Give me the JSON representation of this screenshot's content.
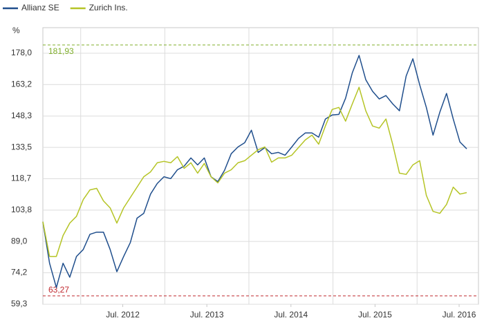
{
  "chart_data": {
    "type": "line",
    "y_unit": "%",
    "x": [
      2011.55,
      2011.63,
      2011.71,
      2011.79,
      2011.87,
      2011.95,
      2012.03,
      2012.11,
      2012.19,
      2012.27,
      2012.35,
      2012.43,
      2012.51,
      2012.59,
      2012.67,
      2012.75,
      2012.83,
      2012.91,
      2012.99,
      2013.07,
      2013.15,
      2013.23,
      2013.31,
      2013.39,
      2013.47,
      2013.55,
      2013.63,
      2013.71,
      2013.79,
      2013.87,
      2013.95,
      2014.03,
      2014.11,
      2014.19,
      2014.27,
      2014.35,
      2014.43,
      2014.51,
      2014.59,
      2014.67,
      2014.75,
      2014.83,
      2014.91,
      2014.99,
      2015.07,
      2015.15,
      2015.23,
      2015.31,
      2015.39,
      2015.47,
      2015.55,
      2015.63,
      2015.71,
      2015.79,
      2015.87,
      2015.95,
      2016.03,
      2016.11,
      2016.19,
      2016.27,
      2016.35,
      2016.43,
      2016.51,
      2016.59
    ],
    "series": [
      {
        "name": "Allianz SE",
        "color": "#1f4e8c",
        "values": [
          98.3,
          78.7,
          67.2,
          78.7,
          72.1,
          81.9,
          85.2,
          92.4,
          93.4,
          93.4,
          85.2,
          74.7,
          81.9,
          88.5,
          100.0,
          102.3,
          111.4,
          116.4,
          119.6,
          118.7,
          122.9,
          124.6,
          128.5,
          125.2,
          128.5,
          119.6,
          117.3,
          122.6,
          130.5,
          133.7,
          135.7,
          141.6,
          131.1,
          133.4,
          130.5,
          131.1,
          129.8,
          133.7,
          137.7,
          140.3,
          140.3,
          138.3,
          146.9,
          148.8,
          149.1,
          156.7,
          168.8,
          177.0,
          165.5,
          160.0,
          156.4,
          158.0,
          154.1,
          150.8,
          167.2,
          175.4,
          163.2,
          152.4,
          139.3,
          150.1,
          159.0,
          146.9,
          136.0,
          132.8
        ]
      },
      {
        "name": "Zurich Ins.",
        "color": "#b5c425",
        "values": [
          98.3,
          81.9,
          81.9,
          91.8,
          97.7,
          100.9,
          108.8,
          113.4,
          114.1,
          108.2,
          104.9,
          97.7,
          104.9,
          109.8,
          114.7,
          119.6,
          121.9,
          126.2,
          126.9,
          126.2,
          129.1,
          123.6,
          126.2,
          121.3,
          125.9,
          119.6,
          116.7,
          121.3,
          122.9,
          126.2,
          127.2,
          129.8,
          132.4,
          133.7,
          126.5,
          128.5,
          128.5,
          129.8,
          133.4,
          137.0,
          139.3,
          135.0,
          143.6,
          151.4,
          152.4,
          145.9,
          154.1,
          161.9,
          150.8,
          143.6,
          142.6,
          146.9,
          135.0,
          121.3,
          120.7,
          125.2,
          127.2,
          110.8,
          103.2,
          102.3,
          106.5,
          114.7,
          111.4,
          112.1
        ]
      }
    ],
    "xlim": [
      2011.55,
      2016.73
    ],
    "xticks": [
      {
        "value": 2012.5,
        "label": "Jul. 2012"
      },
      {
        "value": 2013.5,
        "label": "Jul. 2013"
      },
      {
        "value": 2014.5,
        "label": "Jul. 2014"
      },
      {
        "value": 2015.5,
        "label": "Jul. 2015"
      },
      {
        "value": 2016.5,
        "label": "Jul. 2016"
      }
    ],
    "xgrid": [
      2012,
      2013,
      2014,
      2015,
      2016
    ],
    "ylim": [
      59.3,
      190.1
    ],
    "yticks": [
      {
        "value": 59.3,
        "label": "59,3"
      },
      {
        "value": 74.2,
        "label": "74,2"
      },
      {
        "value": 89.0,
        "label": "89,0"
      },
      {
        "value": 103.8,
        "label": "103,8"
      },
      {
        "value": 118.7,
        "label": "118,7"
      },
      {
        "value": 133.5,
        "label": "133,5"
      },
      {
        "value": 148.3,
        "label": "148,3"
      },
      {
        "value": 163.2,
        "label": "163,2"
      },
      {
        "value": 178.0,
        "label": "178,0"
      }
    ],
    "grid": true,
    "reference_lines": [
      {
        "value": 181.93,
        "label": "181,93",
        "color": "#7fae2a"
      },
      {
        "value": 63.27,
        "label": "63,27",
        "color": "#c0272d"
      }
    ]
  }
}
